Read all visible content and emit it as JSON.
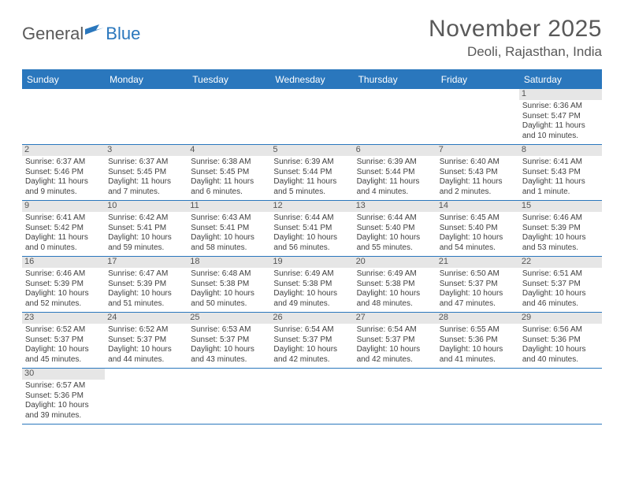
{
  "logo": {
    "text1": "General",
    "text2": "Blue"
  },
  "title": "November 2025",
  "location": "Deoli, Rajasthan, India",
  "colors": {
    "header_bg": "#2a77bd",
    "header_text": "#ffffff",
    "daynum_bg": "#e6e6e6",
    "daynum_text": "#555555",
    "border": "#2a77bd",
    "body_text": "#404040",
    "title_text": "#595959"
  },
  "day_headers": [
    "Sunday",
    "Monday",
    "Tuesday",
    "Wednesday",
    "Thursday",
    "Friday",
    "Saturday"
  ],
  "weeks": [
    [
      {
        "n": "",
        "empty": true
      },
      {
        "n": "",
        "empty": true
      },
      {
        "n": "",
        "empty": true
      },
      {
        "n": "",
        "empty": true
      },
      {
        "n": "",
        "empty": true
      },
      {
        "n": "",
        "empty": true
      },
      {
        "n": "1",
        "sr": "Sunrise: 6:36 AM",
        "ss": "Sunset: 5:47 PM",
        "dl1": "Daylight: 11 hours",
        "dl2": "and 10 minutes."
      }
    ],
    [
      {
        "n": "2",
        "sr": "Sunrise: 6:37 AM",
        "ss": "Sunset: 5:46 PM",
        "dl1": "Daylight: 11 hours",
        "dl2": "and 9 minutes."
      },
      {
        "n": "3",
        "sr": "Sunrise: 6:37 AM",
        "ss": "Sunset: 5:45 PM",
        "dl1": "Daylight: 11 hours",
        "dl2": "and 7 minutes."
      },
      {
        "n": "4",
        "sr": "Sunrise: 6:38 AM",
        "ss": "Sunset: 5:45 PM",
        "dl1": "Daylight: 11 hours",
        "dl2": "and 6 minutes."
      },
      {
        "n": "5",
        "sr": "Sunrise: 6:39 AM",
        "ss": "Sunset: 5:44 PM",
        "dl1": "Daylight: 11 hours",
        "dl2": "and 5 minutes."
      },
      {
        "n": "6",
        "sr": "Sunrise: 6:39 AM",
        "ss": "Sunset: 5:44 PM",
        "dl1": "Daylight: 11 hours",
        "dl2": "and 4 minutes."
      },
      {
        "n": "7",
        "sr": "Sunrise: 6:40 AM",
        "ss": "Sunset: 5:43 PM",
        "dl1": "Daylight: 11 hours",
        "dl2": "and 2 minutes."
      },
      {
        "n": "8",
        "sr": "Sunrise: 6:41 AM",
        "ss": "Sunset: 5:43 PM",
        "dl1": "Daylight: 11 hours",
        "dl2": "and 1 minute."
      }
    ],
    [
      {
        "n": "9",
        "sr": "Sunrise: 6:41 AM",
        "ss": "Sunset: 5:42 PM",
        "dl1": "Daylight: 11 hours",
        "dl2": "and 0 minutes."
      },
      {
        "n": "10",
        "sr": "Sunrise: 6:42 AM",
        "ss": "Sunset: 5:41 PM",
        "dl1": "Daylight: 10 hours",
        "dl2": "and 59 minutes."
      },
      {
        "n": "11",
        "sr": "Sunrise: 6:43 AM",
        "ss": "Sunset: 5:41 PM",
        "dl1": "Daylight: 10 hours",
        "dl2": "and 58 minutes."
      },
      {
        "n": "12",
        "sr": "Sunrise: 6:44 AM",
        "ss": "Sunset: 5:41 PM",
        "dl1": "Daylight: 10 hours",
        "dl2": "and 56 minutes."
      },
      {
        "n": "13",
        "sr": "Sunrise: 6:44 AM",
        "ss": "Sunset: 5:40 PM",
        "dl1": "Daylight: 10 hours",
        "dl2": "and 55 minutes."
      },
      {
        "n": "14",
        "sr": "Sunrise: 6:45 AM",
        "ss": "Sunset: 5:40 PM",
        "dl1": "Daylight: 10 hours",
        "dl2": "and 54 minutes."
      },
      {
        "n": "15",
        "sr": "Sunrise: 6:46 AM",
        "ss": "Sunset: 5:39 PM",
        "dl1": "Daylight: 10 hours",
        "dl2": "and 53 minutes."
      }
    ],
    [
      {
        "n": "16",
        "sr": "Sunrise: 6:46 AM",
        "ss": "Sunset: 5:39 PM",
        "dl1": "Daylight: 10 hours",
        "dl2": "and 52 minutes."
      },
      {
        "n": "17",
        "sr": "Sunrise: 6:47 AM",
        "ss": "Sunset: 5:39 PM",
        "dl1": "Daylight: 10 hours",
        "dl2": "and 51 minutes."
      },
      {
        "n": "18",
        "sr": "Sunrise: 6:48 AM",
        "ss": "Sunset: 5:38 PM",
        "dl1": "Daylight: 10 hours",
        "dl2": "and 50 minutes."
      },
      {
        "n": "19",
        "sr": "Sunrise: 6:49 AM",
        "ss": "Sunset: 5:38 PM",
        "dl1": "Daylight: 10 hours",
        "dl2": "and 49 minutes."
      },
      {
        "n": "20",
        "sr": "Sunrise: 6:49 AM",
        "ss": "Sunset: 5:38 PM",
        "dl1": "Daylight: 10 hours",
        "dl2": "and 48 minutes."
      },
      {
        "n": "21",
        "sr": "Sunrise: 6:50 AM",
        "ss": "Sunset: 5:37 PM",
        "dl1": "Daylight: 10 hours",
        "dl2": "and 47 minutes."
      },
      {
        "n": "22",
        "sr": "Sunrise: 6:51 AM",
        "ss": "Sunset: 5:37 PM",
        "dl1": "Daylight: 10 hours",
        "dl2": "and 46 minutes."
      }
    ],
    [
      {
        "n": "23",
        "sr": "Sunrise: 6:52 AM",
        "ss": "Sunset: 5:37 PM",
        "dl1": "Daylight: 10 hours",
        "dl2": "and 45 minutes."
      },
      {
        "n": "24",
        "sr": "Sunrise: 6:52 AM",
        "ss": "Sunset: 5:37 PM",
        "dl1": "Daylight: 10 hours",
        "dl2": "and 44 minutes."
      },
      {
        "n": "25",
        "sr": "Sunrise: 6:53 AM",
        "ss": "Sunset: 5:37 PM",
        "dl1": "Daylight: 10 hours",
        "dl2": "and 43 minutes."
      },
      {
        "n": "26",
        "sr": "Sunrise: 6:54 AM",
        "ss": "Sunset: 5:37 PM",
        "dl1": "Daylight: 10 hours",
        "dl2": "and 42 minutes."
      },
      {
        "n": "27",
        "sr": "Sunrise: 6:54 AM",
        "ss": "Sunset: 5:37 PM",
        "dl1": "Daylight: 10 hours",
        "dl2": "and 42 minutes."
      },
      {
        "n": "28",
        "sr": "Sunrise: 6:55 AM",
        "ss": "Sunset: 5:36 PM",
        "dl1": "Daylight: 10 hours",
        "dl2": "and 41 minutes."
      },
      {
        "n": "29",
        "sr": "Sunrise: 6:56 AM",
        "ss": "Sunset: 5:36 PM",
        "dl1": "Daylight: 10 hours",
        "dl2": "and 40 minutes."
      }
    ],
    [
      {
        "n": "30",
        "sr": "Sunrise: 6:57 AM",
        "ss": "Sunset: 5:36 PM",
        "dl1": "Daylight: 10 hours",
        "dl2": "and 39 minutes."
      },
      {
        "n": "",
        "empty": true
      },
      {
        "n": "",
        "empty": true
      },
      {
        "n": "",
        "empty": true
      },
      {
        "n": "",
        "empty": true
      },
      {
        "n": "",
        "empty": true
      },
      {
        "n": "",
        "empty": true
      }
    ]
  ]
}
